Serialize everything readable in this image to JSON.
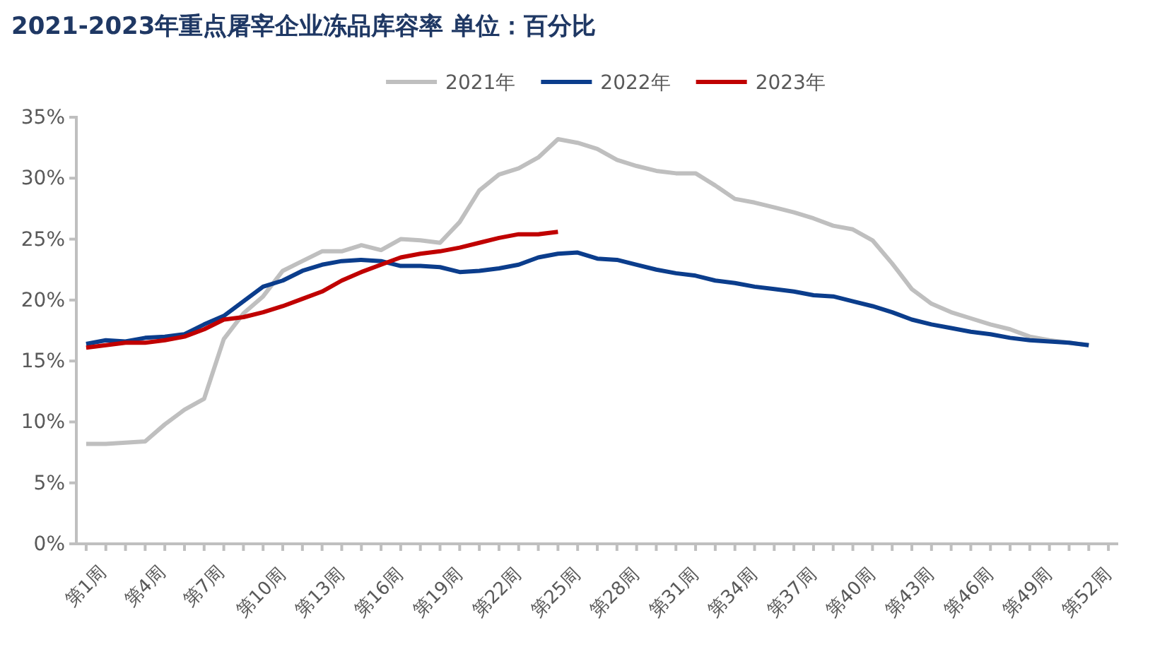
{
  "chart_data": {
    "type": "line",
    "title": "2021-2023年重点屠宰企业冻品库容率 单位：百分比",
    "legend": "top",
    "grid": false,
    "marker": "none",
    "line_style": "solid",
    "categories": [
      "第1周",
      null,
      null,
      "第4周",
      null,
      null,
      "第7周",
      null,
      null,
      "第10周",
      null,
      null,
      "第13周",
      null,
      null,
      "第16周",
      null,
      null,
      "第19周",
      null,
      null,
      "第22周",
      null,
      null,
      "第25周",
      null,
      null,
      "第28周",
      null,
      null,
      "第31周",
      null,
      null,
      "第34周",
      null,
      null,
      "第37周",
      null,
      null,
      "第40周",
      null,
      null,
      "第43周",
      null,
      null,
      "第46周",
      null,
      null,
      "第49周",
      null,
      null,
      "第52周",
      null
    ],
    "ylim": [
      0,
      35
    ],
    "yticks": [
      {
        "value": 0,
        "label": "0%"
      },
      {
        "value": 5,
        "label": "5%"
      },
      {
        "value": 10,
        "label": "10%"
      },
      {
        "value": 15,
        "label": "15%"
      },
      {
        "value": 20,
        "label": "20%"
      },
      {
        "value": 25,
        "label": "25%"
      },
      {
        "value": 30,
        "label": "30%"
      },
      {
        "value": 35,
        "label": "35%"
      }
    ],
    "series": [
      {
        "name": "2021年",
        "color": "#bfbfbf",
        "values": [
          8.2,
          8.2,
          8.3,
          8.4,
          9.8,
          11.0,
          11.9,
          16.8,
          18.9,
          20.3,
          22.4,
          23.2,
          24.0,
          24.0,
          24.5,
          24.1,
          25.0,
          24.9,
          24.7,
          26.4,
          29.0,
          30.3,
          30.8,
          31.7,
          33.2,
          32.9,
          32.4,
          31.5,
          31.0,
          30.6,
          30.4,
          30.4,
          29.4,
          28.3,
          28.0,
          27.6,
          27.2,
          26.7,
          26.1,
          25.8,
          24.9,
          23.0,
          20.9,
          19.7,
          19.0,
          18.5,
          18.0,
          17.6,
          17.0,
          16.7,
          16.5,
          16.3,
          null
        ]
      },
      {
        "name": "2022年",
        "color": "#0b3d8c",
        "values": [
          16.4,
          16.7,
          16.6,
          16.9,
          17.0,
          17.2,
          18.0,
          18.7,
          19.9,
          21.1,
          21.6,
          22.4,
          22.9,
          23.2,
          23.3,
          23.2,
          22.8,
          22.8,
          22.7,
          22.3,
          22.4,
          22.6,
          22.9,
          23.5,
          23.8,
          23.9,
          23.4,
          23.3,
          22.9,
          22.5,
          22.2,
          22.0,
          21.6,
          21.4,
          21.1,
          20.9,
          20.7,
          20.4,
          20.3,
          19.9,
          19.5,
          19.0,
          18.4,
          18.0,
          17.7,
          17.4,
          17.2,
          16.9,
          16.7,
          16.6,
          16.5,
          16.3,
          null
        ]
      },
      {
        "name": "2023年",
        "color": "#c00000",
        "values": [
          16.1,
          16.3,
          16.5,
          16.5,
          16.7,
          17.0,
          17.6,
          18.4,
          18.6,
          19.0,
          19.5,
          20.1,
          20.7,
          21.6,
          22.3,
          22.9,
          23.5,
          23.8,
          24.0,
          24.3,
          24.7,
          25.1,
          25.4,
          25.4,
          25.6,
          null,
          null,
          null,
          null,
          null,
          null,
          null,
          null,
          null,
          null,
          null,
          null,
          null,
          null,
          null,
          null,
          null,
          null,
          null,
          null,
          null,
          null,
          null,
          null,
          null,
          null,
          null,
          null
        ]
      }
    ]
  }
}
